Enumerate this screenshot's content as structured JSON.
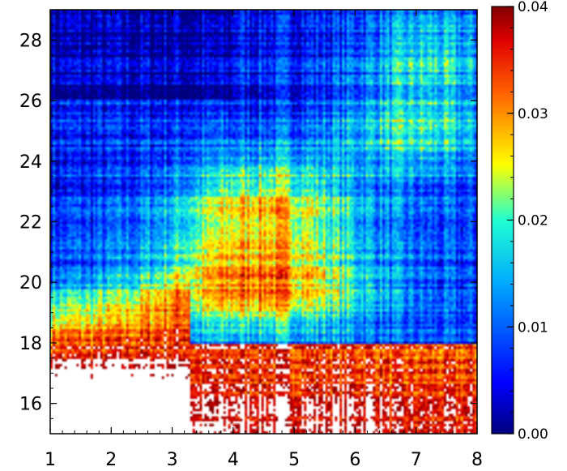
{
  "chart_data": {
    "type": "heatmap",
    "title": "",
    "xlabel": "",
    "ylabel": "",
    "xlim": [
      1,
      8
    ],
    "ylim": [
      15,
      29
    ],
    "x_ticks": [
      "1",
      "2",
      "3",
      "4",
      "5",
      "6",
      "7",
      "8"
    ],
    "y_ticks": [
      "16",
      "18",
      "20",
      "22",
      "24",
      "26",
      "28"
    ],
    "colorbar": {
      "min": 0.0,
      "max": 0.04,
      "ticks": [
        "0.00",
        "0.01",
        "0.02",
        "0.03",
        "0.04"
      ],
      "colormap": "rainbow",
      "over_color": "#ffffff"
    }
  }
}
